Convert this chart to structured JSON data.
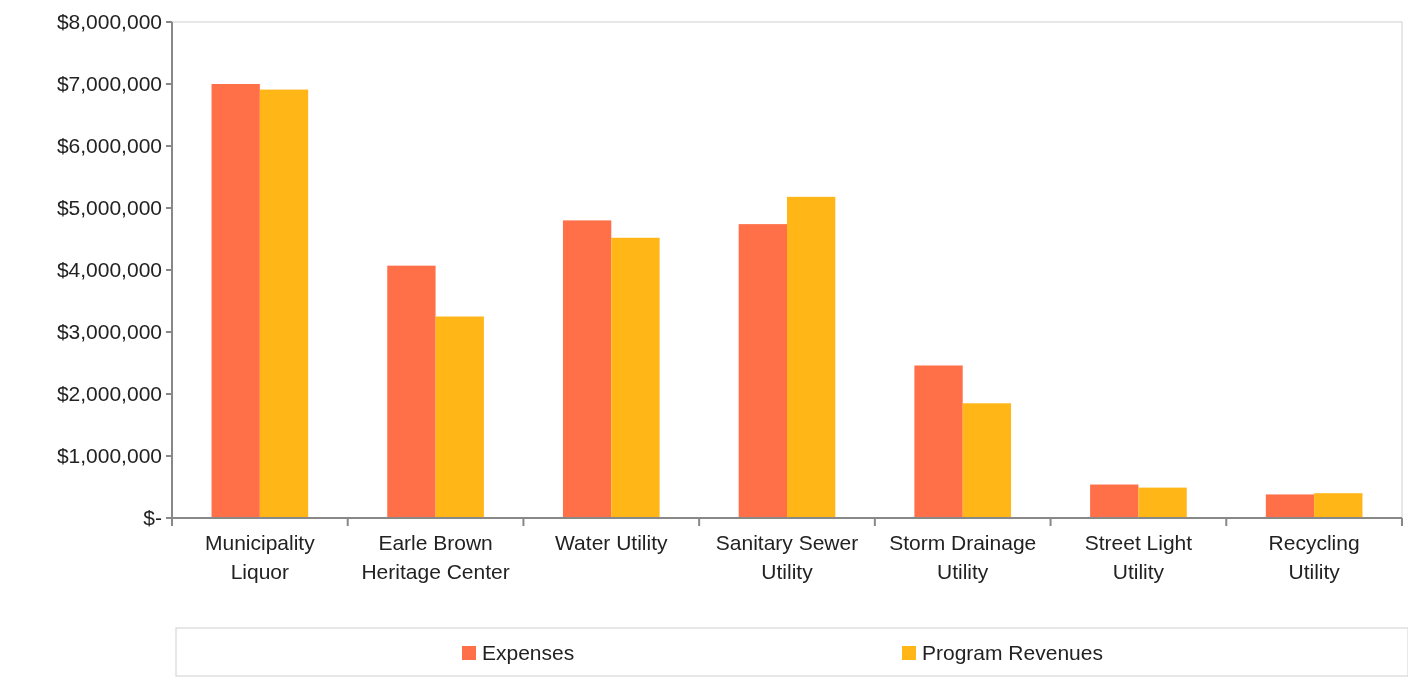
{
  "chart_data": {
    "type": "bar",
    "categories": [
      "Municipality Liquor",
      "Earle Brown Heritage Center",
      "Water Utility",
      "Sanitary Sewer Utility",
      "Storm Drainage Utility",
      "Street Light Utility",
      "Recycling Utility"
    ],
    "series": [
      {
        "name": "Expenses",
        "color": "#ff7049",
        "values": [
          7000000,
          4070000,
          4800000,
          4740000,
          2460000,
          540000,
          380000
        ]
      },
      {
        "name": "Program Revenues",
        "color": "#ffb616",
        "values": [
          6910000,
          3250000,
          4520000,
          5180000,
          1850000,
          490000,
          400000
        ]
      }
    ],
    "ylim": [
      0,
      8000000
    ],
    "yticks": [
      {
        "value": 0,
        "label": "$-"
      },
      {
        "value": 1000000,
        "label": "$1,000,000"
      },
      {
        "value": 2000000,
        "label": "$2,000,000"
      },
      {
        "value": 3000000,
        "label": "$3,000,000"
      },
      {
        "value": 4000000,
        "label": "$4,000,000"
      },
      {
        "value": 5000000,
        "label": "$5,000,000"
      },
      {
        "value": 6000000,
        "label": "$6,000,000"
      },
      {
        "value": 7000000,
        "label": "$7,000,000"
      },
      {
        "value": 8000000,
        "label": "$8,000,000"
      }
    ],
    "grid": false,
    "legend": "bottom"
  }
}
